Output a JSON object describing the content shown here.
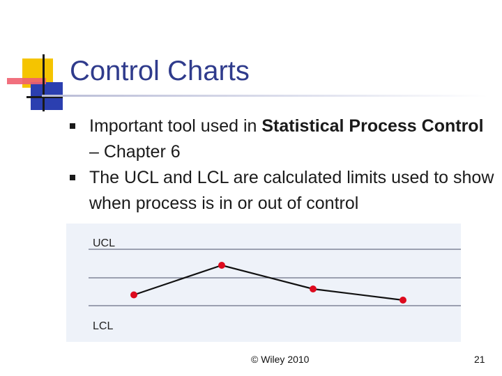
{
  "slide": {
    "title": "Control Charts",
    "bullets": [
      {
        "text": "Important tool used in ",
        "bold": "Statistical Process Control",
        "tail": " – Chapter 6"
      },
      {
        "text": "The UCL and LCL are calculated limits used to show when process is in or out of control"
      }
    ],
    "footer": "© Wiley 2010",
    "page_number": "21"
  },
  "chart_data": {
    "type": "line",
    "labels": {
      "upper": "UCL",
      "lower": "LCL"
    },
    "values": [
      0.15,
      1.0,
      0.32,
      0.0
    ],
    "colors": {
      "line": "#111111",
      "points": "#dd0a1e",
      "background": "#eef2f9",
      "rules": "#6a6f85"
    }
  }
}
